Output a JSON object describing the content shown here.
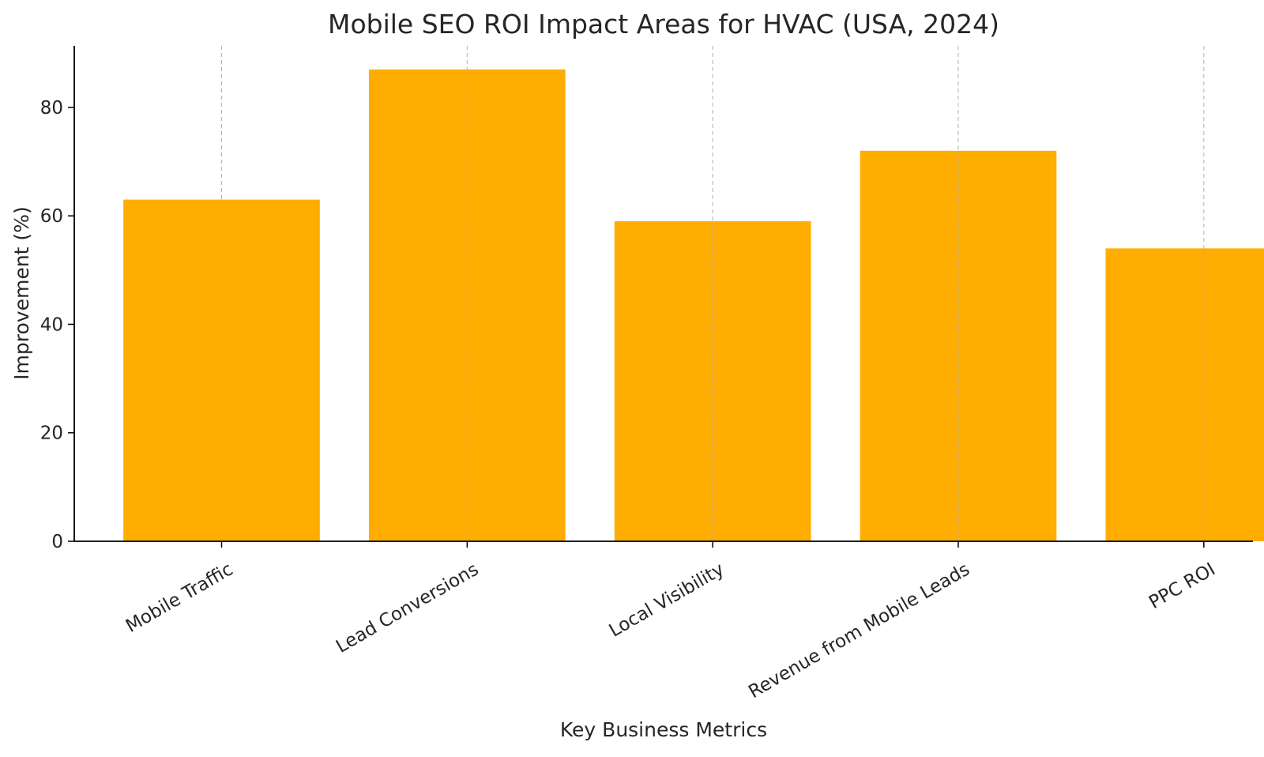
{
  "chart_data": {
    "type": "bar",
    "title": "Mobile SEO ROI Impact Areas for HVAC (USA, 2024)",
    "xlabel": "Key Business Metrics",
    "ylabel": "Improvement (%)",
    "categories": [
      "Mobile Traffic",
      "Lead Conversions",
      "Local Visibility",
      "Revenue from Mobile Leads",
      "PPC ROI"
    ],
    "values": [
      63,
      87,
      59,
      72,
      54
    ],
    "ylim": [
      0,
      91.35
    ],
    "yticks": [
      0,
      20,
      40,
      60,
      80
    ],
    "bar_color": "#FFAD00",
    "grid": "x-axis dashed vertical",
    "legend": "none"
  }
}
